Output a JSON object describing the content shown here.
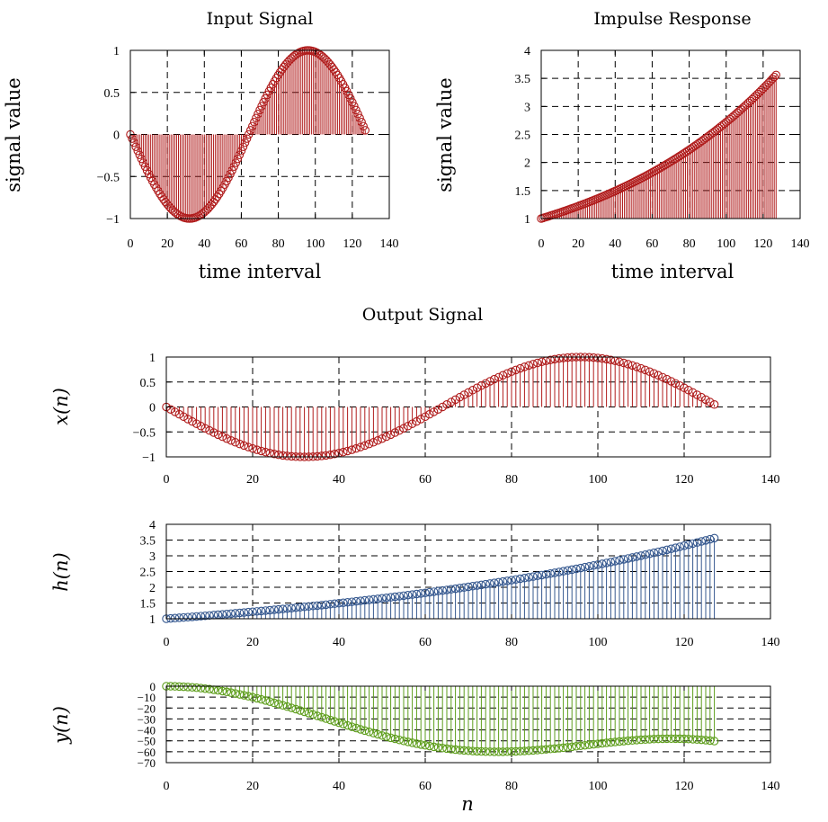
{
  "figure_title": "Output Signal",
  "colors": {
    "red": "#b01c1c",
    "blue": "#35588f",
    "green": "#5e9e1c"
  },
  "chart_data": [
    {
      "id": "input",
      "type": "stem",
      "title": "Input Signal",
      "xlabel": "time interval",
      "ylabel": "signal value",
      "xlim": [
        0,
        140
      ],
      "ylim": [
        -1,
        1
      ],
      "xticks": [
        "0",
        "20",
        "40",
        "60",
        "80",
        "100",
        "120",
        "140"
      ],
      "yticks": [
        "−1",
        "−0.5",
        "0",
        "0.5",
        "1"
      ],
      "grid": true,
      "color": "red",
      "formula": "x(n) = -sin(2*pi*n/128)",
      "n": [
        0,
        127
      ]
    },
    {
      "id": "impulse",
      "type": "stem",
      "title": "Impulse Response",
      "xlabel": "time interval",
      "ylabel": "signal value",
      "xlim": [
        0,
        140
      ],
      "ylim": [
        1,
        4
      ],
      "xticks": [
        "0",
        "20",
        "40",
        "60",
        "80",
        "100",
        "120",
        "140"
      ],
      "yticks": [
        "1",
        "1.5",
        "2",
        "2.5",
        "3",
        "3.5",
        "4"
      ],
      "grid": true,
      "color": "red",
      "formula": "h(n) = exp(n/100)",
      "n": [
        0,
        127
      ]
    },
    {
      "id": "x_n",
      "type": "stem",
      "ylabel": "x(n)",
      "xlim": [
        0,
        140
      ],
      "ylim": [
        -1,
        1
      ],
      "xticks": [
        "0",
        "20",
        "40",
        "60",
        "80",
        "100",
        "120",
        "140"
      ],
      "yticks": [
        "−1",
        "−0.5",
        "0",
        "0.5",
        "1"
      ],
      "grid": true,
      "color": "red",
      "formula": "x(n) = -sin(2*pi*n/128)",
      "n": [
        0,
        127
      ]
    },
    {
      "id": "h_n",
      "type": "stem",
      "ylabel": "h(n)",
      "xlim": [
        0,
        140
      ],
      "ylim": [
        1,
        4
      ],
      "xticks": [
        "0",
        "20",
        "40",
        "60",
        "80",
        "100",
        "120",
        "140"
      ],
      "yticks": [
        "1",
        "1.5",
        "2",
        "2.5",
        "3",
        "3.5",
        "4"
      ],
      "grid": true,
      "color": "blue",
      "formula": "h(n) = exp(n/100)",
      "n": [
        0,
        127
      ]
    },
    {
      "id": "y_n",
      "type": "stem",
      "ylabel": "y(n)",
      "xlabel": "n",
      "xlim": [
        0,
        140
      ],
      "ylim": [
        -70,
        0
      ],
      "xticks": [
        "0",
        "20",
        "40",
        "60",
        "80",
        "100",
        "120",
        "140"
      ],
      "yticks": [
        "−70",
        "−60",
        "−50",
        "−40",
        "−30",
        "−20",
        "−10",
        "0"
      ],
      "grid": true,
      "color": "green",
      "formula": "y(n) = sum_k x(k) h(n-k), k = 0..n",
      "n": [
        0,
        127
      ]
    }
  ]
}
